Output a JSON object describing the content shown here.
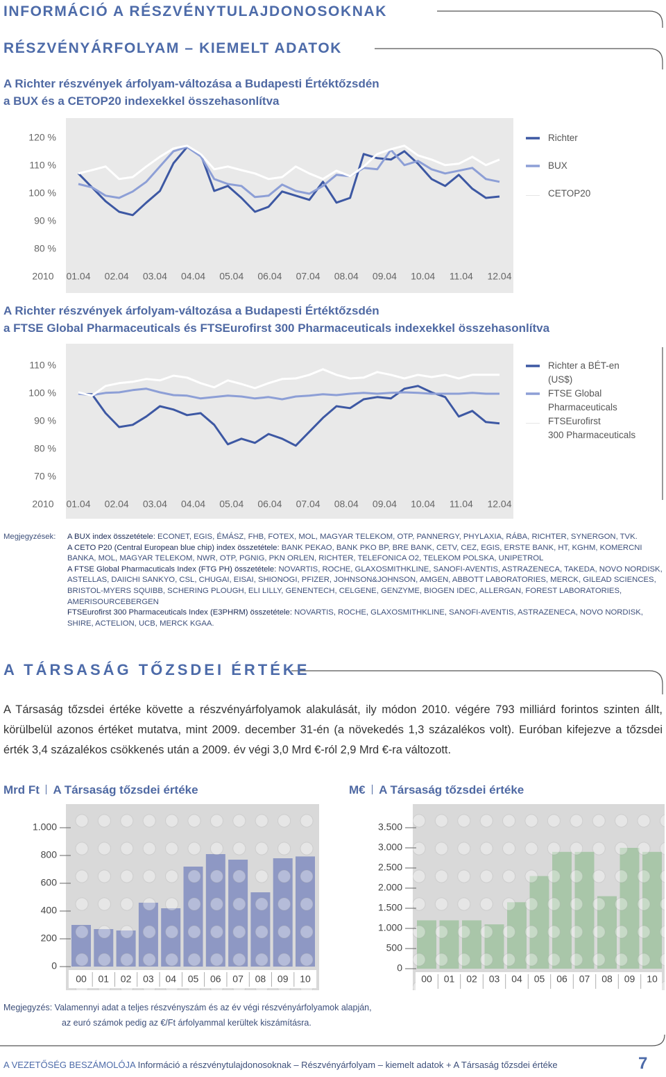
{
  "header": {
    "title": "INFORMÁCIÓ A RÉSZVÉNYTULAJDONOSOKNAK",
    "subtitle": "RÉSZVÉNYÁRFOLYAM – KIEMELT ADATOK"
  },
  "chart_data": [
    {
      "type": "line",
      "title_lines": [
        "A Richter részvények árfolyam-változása a Budapesti Értéktőzsdén",
        "a BUX és a CETOP20 indexekkel összehasonlítva"
      ],
      "x_start_label": "2010",
      "x_labels": [
        "01.04",
        "02.04",
        "03.04",
        "04.04",
        "05.04",
        "06.04",
        "07.04",
        "08.04",
        "09.04",
        "10.04",
        "11.04",
        "12.04"
      ],
      "ylim": [
        80,
        120
      ],
      "yticks": [
        {
          "value": 120,
          "label": "120 %"
        },
        {
          "value": 110,
          "label": "110 %"
        },
        {
          "value": 100,
          "label": "100 %"
        },
        {
          "value": 90,
          "label": "90 %"
        },
        {
          "value": 80,
          "label": "80 %"
        }
      ],
      "series": [
        {
          "name": "Richter",
          "color": "#3d58a3",
          "values": [
            107.3,
            102.3,
            97.3,
            93.5,
            92.3,
            96.8,
            101,
            111,
            116.8,
            114.3,
            101,
            102.8,
            98.5,
            93.5,
            95.3,
            100.8,
            99.3,
            97.8,
            104.3,
            96.8,
            98.5,
            114.3,
            112.8,
            112.3,
            115.3,
            110.8,
            105.3,
            102.8,
            106.8,
            101.8,
            98.5,
            99
          ]
        },
        {
          "name": "BUX",
          "color": "#8d9fd6",
          "values": [
            103.5,
            102.3,
            99.3,
            98.5,
            100.8,
            104.3,
            109.8,
            115.3,
            116.8,
            113.5,
            105.3,
            103.5,
            102.8,
            98.8,
            99.3,
            103.3,
            101,
            100,
            102.8,
            106.8,
            106.3,
            109.3,
            108.8,
            115.8,
            110.3,
            111.8,
            108.8,
            107.3,
            108.3,
            109.3,
            105.3,
            104.3
          ]
        },
        {
          "name": "CETOP20",
          "color": "#ffffff",
          "values": [
            107.3,
            108.5,
            109.8,
            105.3,
            106,
            109.8,
            113.3,
            116.3,
            117.3,
            114.3,
            108.8,
            109.8,
            108.5,
            107.3,
            105.3,
            106,
            109.8,
            107.3,
            105.3,
            108.3,
            106.3,
            109.8,
            114.3,
            116,
            117.3,
            113.8,
            112.3,
            110.3,
            110.8,
            113.3,
            110.3,
            112.3
          ]
        }
      ]
    },
    {
      "type": "line",
      "title_lines": [
        "A Richter részvények árfolyam-változása a Budapesti Értéktőzsdén",
        "a FTSE Global Pharmaceuticals és FTSEurofirst 300 Pharmaceuticals indexekkel összehasonlítva"
      ],
      "x_start_label": "2010",
      "x_labels": [
        "01.04",
        "02.04",
        "03.04",
        "04.04",
        "05.04",
        "06.04",
        "07.04",
        "08.04",
        "09.04",
        "10.04",
        "11.04",
        "12.04"
      ],
      "ylim": [
        70,
        110
      ],
      "yticks": [
        {
          "value": 110,
          "label": "110 %"
        },
        {
          "value": 100,
          "label": "100 %"
        },
        {
          "value": 90,
          "label": "90 %"
        },
        {
          "value": 80,
          "label": "80 %"
        },
        {
          "value": 70,
          "label": "70 %"
        }
      ],
      "series": [
        {
          "name": "Richter a BÉT-en\n(US$)",
          "color": "#3d58a3",
          "values": [
            100,
            99.8,
            93,
            88,
            88.8,
            91.8,
            95.5,
            94.3,
            92.3,
            93,
            88.8,
            81.8,
            83.8,
            82.3,
            85.5,
            83.8,
            81.3,
            86.3,
            91.3,
            95.5,
            94.8,
            98,
            98.8,
            98.3,
            101.8,
            102.8,
            100.5,
            98.8,
            91.8,
            93.8,
            89.8,
            89.3
          ]
        },
        {
          "name": "FTSE Global\nPharmaceuticals",
          "color": "#8d9fd6",
          "values": [
            100,
            99.5,
            100.3,
            100.5,
            101.3,
            101.8,
            100.5,
            99.5,
            99.3,
            98.3,
            98.8,
            99.3,
            99,
            98.3,
            98.8,
            98,
            99,
            99.3,
            99.8,
            99.5,
            100,
            100.3,
            100,
            100.3,
            100.5,
            100.3,
            100,
            100,
            100,
            100.3,
            100,
            100
          ]
        },
        {
          "name": "FTSEurofirst\n300 Pharmaceuticals",
          "color": "#ffffff",
          "values": [
            100.5,
            99.3,
            102.8,
            103.8,
            104.3,
            105.3,
            104.8,
            106.5,
            105.8,
            103.8,
            102.3,
            104.8,
            103.5,
            102,
            103.8,
            105.3,
            105.5,
            106.8,
            108.8,
            106.8,
            105.5,
            105.8,
            107.8,
            106.8,
            105.5,
            106.8,
            106,
            106.8,
            105.5,
            106.8,
            106.8,
            106.8
          ]
        }
      ]
    },
    {
      "type": "bar",
      "unit": "Mrd Ft",
      "title": "A Társaság tőzsdei értéke",
      "categories": [
        "00",
        "01",
        "02",
        "03",
        "04",
        "05",
        "06",
        "07",
        "08",
        "09",
        "10"
      ],
      "values": [
        300,
        270,
        260,
        460,
        420,
        720,
        810,
        770,
        535,
        780,
        793
      ],
      "color": "#8e98c4",
      "ylim": [
        0,
        1000
      ],
      "yticks": [
        0,
        200,
        400,
        600,
        800,
        {
          "value": 1000,
          "label": "1.000"
        }
      ]
    },
    {
      "type": "bar",
      "unit": "M€",
      "title": "A Társaság tőzsdei értéke",
      "categories": [
        "00",
        "01",
        "02",
        "03",
        "04",
        "05",
        "06",
        "07",
        "08",
        "09",
        "10"
      ],
      "values": [
        1200,
        1200,
        1200,
        1100,
        1650,
        2300,
        2900,
        2900,
        1800,
        3000,
        2900
      ],
      "color": "#a9c6a9",
      "ylim": [
        0,
        3500
      ],
      "yticks": [
        0,
        500,
        {
          "value": 1000,
          "label": "1.000"
        },
        {
          "value": 1500,
          "label": "1.500"
        },
        {
          "value": 2000,
          "label": "2.000"
        },
        {
          "value": 2500,
          "label": "2.500"
        },
        {
          "value": 3000,
          "label": "3.000"
        },
        {
          "value": 3500,
          "label": "3.500"
        }
      ]
    }
  ],
  "notes": {
    "label": "Megjegyzések:",
    "items": [
      {
        "title": "A BUX index összetétele:",
        "text": " ECONET, EGIS, ÉMÁSZ, FHB, FOTEX, MOL, MAGYAR TELEKOM, OTP, PANNERGY, PHYLAXIA, RÁBA, RICHTER, SYNERGON, TVK."
      },
      {
        "title": "A CETO P20 (Central European blue chip) index összetétele:",
        "text": " BANK PEKAO, BANK PKO BP, BRE BANK, CETV, CEZ, EGIS, ERSTE BANK, HT, KGHM, KOMERCNI BANKA, MOL, MAGYAR TELEKOM, NWR, OTP, PGNIG, PKN ORLEN, RICHTER, TELEFONICA O2, TELEKOM POLSKA, UNIPETROL"
      },
      {
        "title": "A FTSE Global Pharmacuticals Index (FTG PH) összetétele:",
        "text": " NOVARTIS, ROCHE, GLAXOSMITHKLINE, SANOFI-AVENTIS, ASTRAZENECA, TAKEDA, NOVO NORDISK, ASTELLAS, DAIICHI SANKYO, CSL, CHUGAI, EISAI, SHIONOGI, PFIZER, JOHNSON&JOHNSON, AMGEN, ABBOTT LABORATORIES, MERCK, GILEAD SCIENCES, BRISTOL-MYERS SQUIBB, SCHERING PLOUGH, ELI LILLY, GENENTECH, CELGENE, GENZYME, BIOGEN IDEC, ALLERGAN, FOREST LABORATORIES, AMERISOURCEBERGEN"
      },
      {
        "title": "FTSEurofirst 300 Pharmaceuticals Index (E3PHRM) összetétele:",
        "text": " NOVARTIS, ROCHE, GLAXOSMITHKLINE, SANOFI-AVENTIS, ASTRAZENECA, NOVO NORDISK, SHIRE, ACTELION, UCB, MERCK KGAA."
      }
    ]
  },
  "section_title": "A TÁRSASÁG TŐZSDEI ÉRTÉKE",
  "paragraph": "A Társaság tőzsdei értéke követte a részvényárfolyamok alakulását, ily módon 2010. végére 793 milliárd forintos szinten állt, körülbelül azonos értéket mutatva, mint 2009. december 31-én (a növekedés 1,3 százalékos volt). Euróban kifejezve a tőzsdei érték 3,4 százalékos csökkenés után a 2009. év végi 3,0 Mrd €-ról 2,9 Mrd €-ra változott.",
  "footnote": {
    "label": "Megjegyzés:",
    "lines": [
      "Valamennyi adat a teljes részvényszám és az év végi részvényárfolyamok alapján,",
      "az euró számok pedig az €/Ft árfolyammal kerültek kiszámításra."
    ]
  },
  "footer": {
    "section": "A VEZETŐSÉG BESZÁMOLÓJA",
    "text": " Információ a részvénytulajdonosoknak – Részvényárfolyam – kiemelt adatok + A Társaság tőzsdei értéke",
    "page": "7"
  }
}
